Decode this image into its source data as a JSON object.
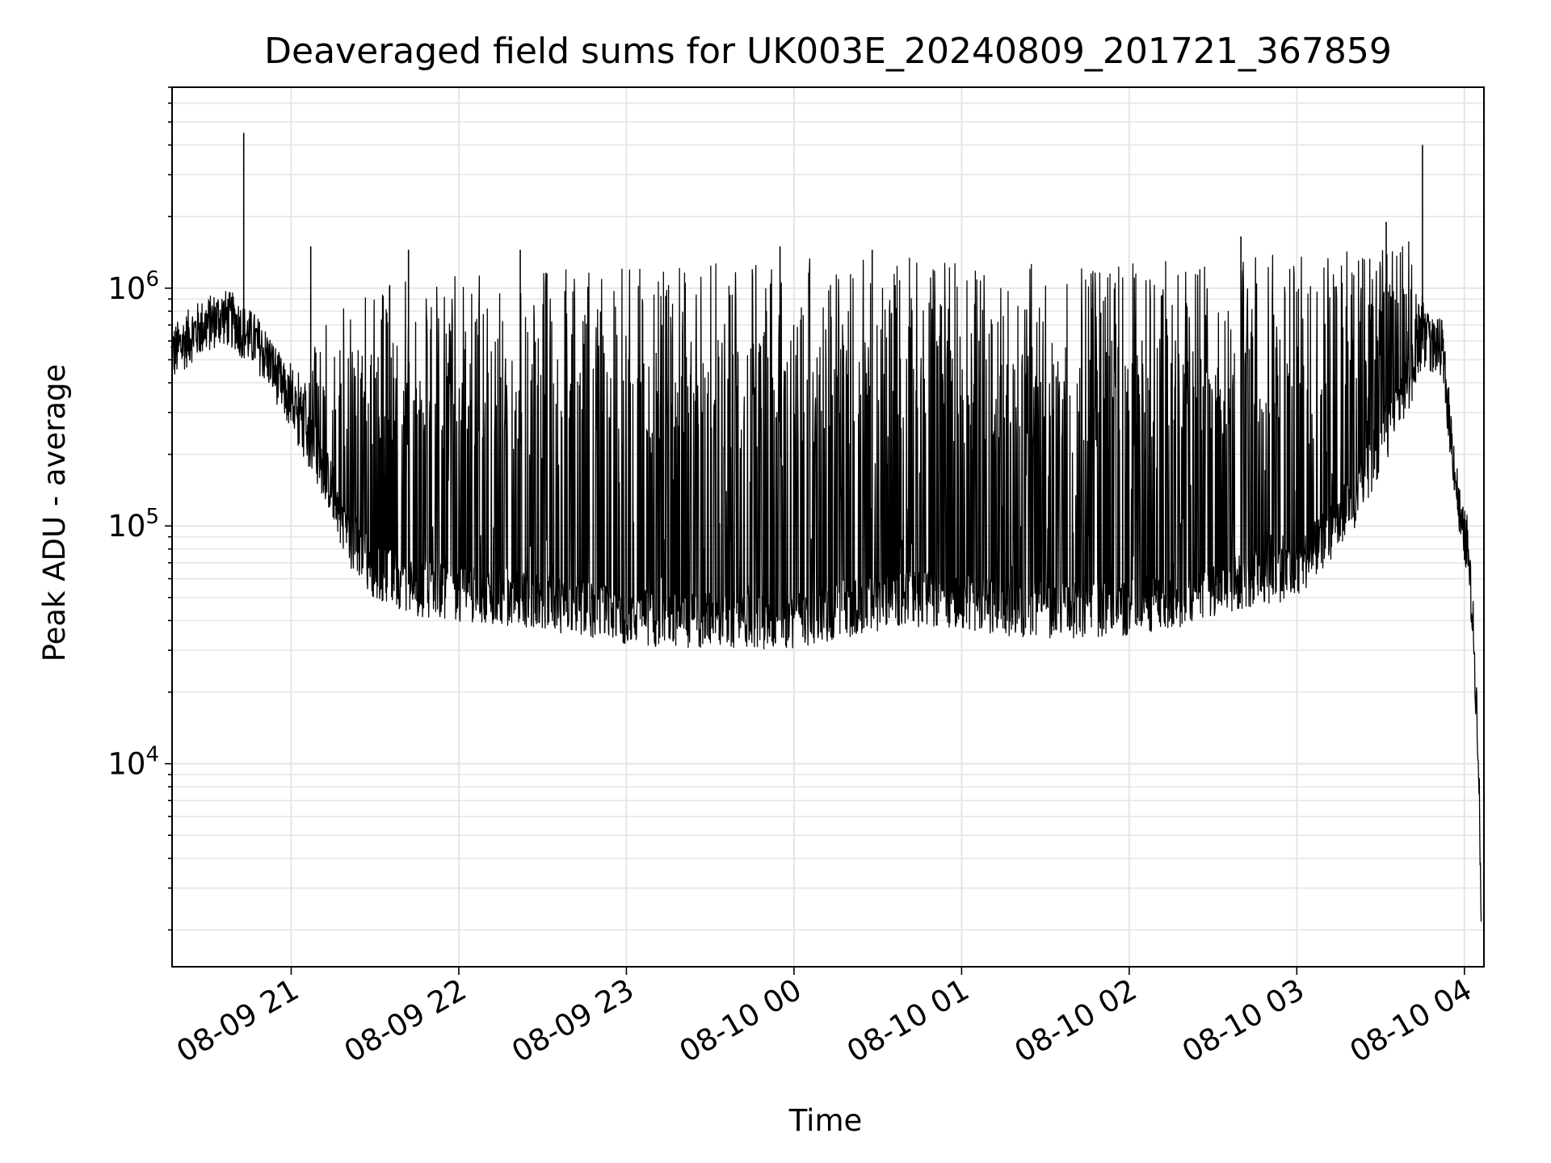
{
  "chart_data": {
    "type": "line",
    "title": "Deaveraged field sums for UK003E_20240809_201721_367859",
    "xlabel": "Time",
    "ylabel": "Peak ADU - average",
    "yscale": "log",
    "ylim": [
      1400,
      7000000
    ],
    "xlim": [
      "2024-08-09 20:17:21",
      "2024-08-10 04:07:00"
    ],
    "grid": true,
    "legend": "none",
    "line_color": "#000000",
    "grid_color": "#e5e5e5",
    "x_ticks": [
      {
        "value": "2024-08-09 21:00",
        "label": "08-09 21"
      },
      {
        "value": "2024-08-09 22:00",
        "label": "08-09 22"
      },
      {
        "value": "2024-08-09 23:00",
        "label": "08-09 23"
      },
      {
        "value": "2024-08-10 00:00",
        "label": "08-10 00"
      },
      {
        "value": "2024-08-10 01:00",
        "label": "08-10 01"
      },
      {
        "value": "2024-08-10 02:00",
        "label": "08-10 02"
      },
      {
        "value": "2024-08-10 03:00",
        "label": "08-10 03"
      },
      {
        "value": "2024-08-10 04:00",
        "label": "08-10 04"
      }
    ],
    "y_ticks": [
      {
        "value": 10000,
        "base": "10",
        "exp": "4"
      },
      {
        "value": 100000,
        "base": "10",
        "exp": "5"
      },
      {
        "value": 1000000,
        "base": "10",
        "exp": "6"
      }
    ],
    "series": [
      {
        "x": [
          "2024-08-09 20:17",
          "2024-08-09 20:25",
          "2024-08-09 20:30",
          "2024-08-09 20:35",
          "2024-08-09 20:40",
          "2024-08-09 20:43",
          "2024-08-09 20:47",
          "2024-08-09 20:52",
          "2024-08-09 21:00",
          "2024-08-09 21:08",
          "2024-08-09 21:15",
          "2024-08-09 21:20",
          "2024-08-09 21:30",
          "2024-08-09 21:45",
          "2024-08-09 22:00",
          "2024-08-09 22:20",
          "2024-08-09 22:40",
          "2024-08-09 23:00",
          "2024-08-09 23:20",
          "2024-08-09 23:40",
          "2024-08-10 00:00",
          "2024-08-10 00:20",
          "2024-08-10 00:40",
          "2024-08-10 01:00",
          "2024-08-10 01:20",
          "2024-08-10 01:40",
          "2024-08-10 02:00",
          "2024-08-10 02:20",
          "2024-08-10 02:40",
          "2024-08-10 03:00",
          "2024-08-10 03:20",
          "2024-08-10 03:40",
          "2024-08-10 03:45",
          "2024-08-10 03:52",
          "2024-08-10 03:55",
          "2024-08-10 03:59",
          "2024-08-10 04:01",
          "2024-08-10 04:03",
          "2024-08-10 04:05",
          "2024-08-10 04:06"
        ],
        "y": [
          520000,
          650000,
          700000,
          760000,
          720000,
          650000,
          600000,
          500000,
          320000,
          210000,
          140000,
          90000,
          65000,
          55000,
          52000,
          50000,
          46000,
          42000,
          40000,
          40000,
          40000,
          45000,
          50000,
          48000,
          45000,
          44000,
          45000,
          50000,
          58000,
          65000,
          120000,
          400000,
          600000,
          560000,
          250000,
          95000,
          85000,
          40000,
          12000,
          2500
        ],
        "envelope_upper": [
          620000,
          900000,
          1000000,
          1050000,
          980000,
          850000,
          700000,
          550000,
          600000,
          700000,
          800000,
          900000,
          1000000,
          1100000,
          1150000,
          1200000,
          1250000,
          1250000,
          1300000,
          1300000,
          1350000,
          1350000,
          1350000,
          1300000,
          1300000,
          1300000,
          1300000,
          1350000,
          1400000,
          1450000,
          1500000,
          1600000,
          1200000,
          900000,
          400000,
          120000,
          110000,
          50000,
          15000,
          3500
        ]
      }
    ],
    "spikes": [
      {
        "x": "2024-08-09 20:43",
        "y": 4500000
      },
      {
        "x": "2024-08-09 21:07",
        "y": 1500000
      },
      {
        "x": "2024-08-09 21:42",
        "y": 1450000
      },
      {
        "x": "2024-08-09 22:22",
        "y": 1450000
      },
      {
        "x": "2024-08-09 23:55",
        "y": 1500000
      },
      {
        "x": "2024-08-10 00:28",
        "y": 1450000
      },
      {
        "x": "2024-08-10 02:40",
        "y": 1650000
      },
      {
        "x": "2024-08-10 03:32",
        "y": 1900000
      },
      {
        "x": "2024-08-10 03:45",
        "y": 4000000
      }
    ]
  }
}
